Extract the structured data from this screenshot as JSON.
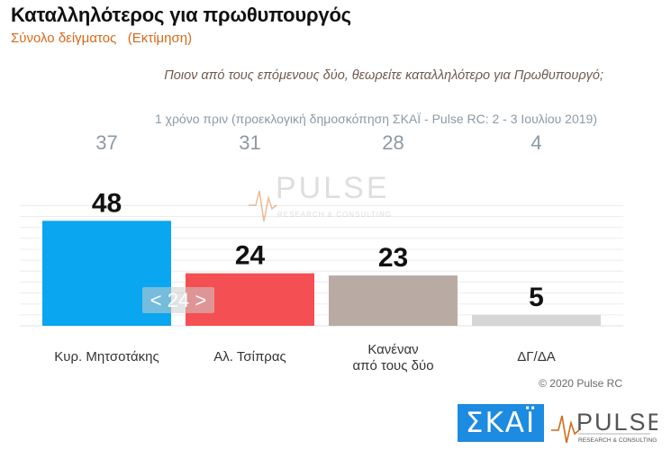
{
  "title": "Καταλληλότερος για πρωθυπουργός",
  "subtitle": "Σύνολο δείγματος   (Εκτίμηση)",
  "question": "Ποιον από τους επόμενους δύο, θεωρείτε καταλληλότερο για Πρωθυπουργό;",
  "previous_note": "1 χρόνο πριν (προεκλογική δημοσκόπηση ΣΚΑΪ - Pulse RC:  2 - 3 Ιουλίου 2019)",
  "pager_label": "< 24 >",
  "copyright": "© 2020 Pulse RC",
  "logos": {
    "skai": "ΣΚΑΪ",
    "pulse": "PULSE",
    "pulse_tagline": "RESEARCH & CONSULTING"
  },
  "colors": {
    "accent_orange": "#d46a1a",
    "bar_colors": [
      "#0aa6ef",
      "#f44f52",
      "#b9aba4",
      "#d6d6d6"
    ]
  },
  "chart_data": {
    "type": "bar",
    "categories": [
      [
        "Κυρ. Μητσοτάκης"
      ],
      [
        "Αλ. Τσίπρας"
      ],
      [
        "Κανέναν",
        "από τους δύο"
      ],
      [
        "ΔΓ/ΔΑ"
      ]
    ],
    "values": [
      48,
      24,
      23,
      5
    ],
    "previous_values": [
      37,
      31,
      28,
      4
    ],
    "ylim": [
      0,
      60
    ],
    "grid": true
  }
}
